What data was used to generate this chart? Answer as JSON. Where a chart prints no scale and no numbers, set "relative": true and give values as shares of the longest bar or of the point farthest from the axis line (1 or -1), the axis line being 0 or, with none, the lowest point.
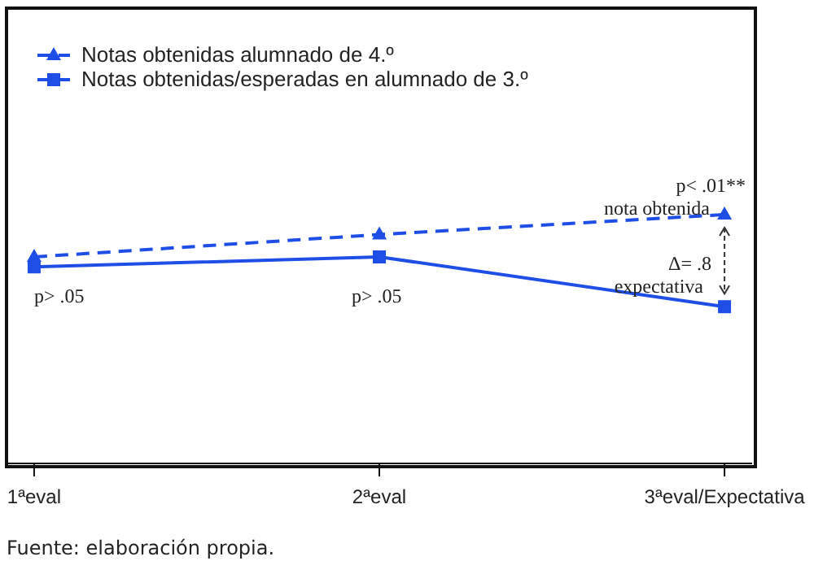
{
  "chart_data": {
    "type": "line",
    "relative": true,
    "categories": [
      "1ªeval",
      "2ªeval",
      "3ªeval/Expectativa"
    ],
    "series": [
      {
        "name": "Notas obtenidas alumnado de 4.º",
        "color": "#1e4ee6",
        "values": [
          0.83,
          0.92,
          1.0
        ],
        "marker": "triangle",
        "line_style": "dashed"
      },
      {
        "name": "Notas obtenidas/esperadas en alumnado de 3.º",
        "color": "#1e4ee6",
        "values": [
          0.79,
          0.83,
          0.63
        ],
        "marker": "square",
        "line_style": "solid"
      }
    ],
    "legend": "top left",
    "annotations": [
      "p> .05",
      "p> .05",
      "p< .01**",
      "nota obtenida",
      "Δ= .8",
      "expectativa",
      "Fuente: elaboración propia."
    ]
  }
}
